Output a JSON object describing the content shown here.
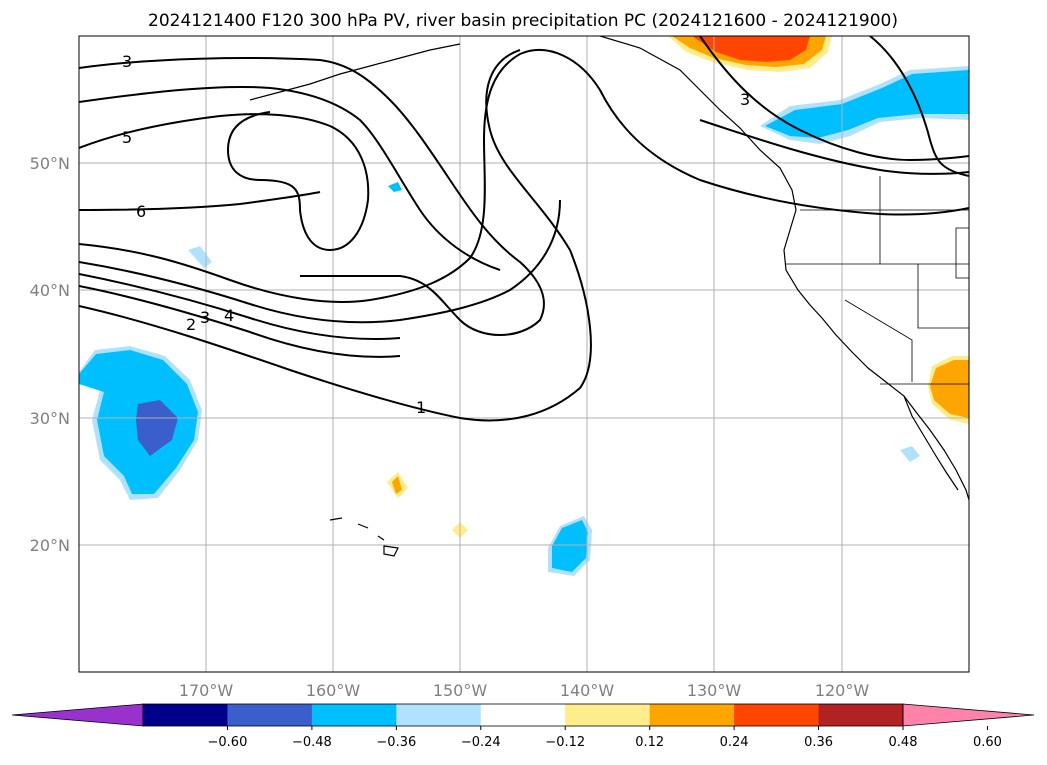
{
  "title": "2024121400 F120 300 hPa PV, river basin precipitation PC (2024121600 - 2024121900)",
  "map": {
    "lon_range": [
      -180,
      -110
    ],
    "lat_range": [
      10,
      60
    ],
    "lat_ticks": [
      {
        "value": 50,
        "label": "50°N"
      },
      {
        "value": 40,
        "label": "40°N"
      },
      {
        "value": 30,
        "label": "30°N"
      },
      {
        "value": 20,
        "label": "20°N"
      }
    ],
    "lon_ticks": [
      {
        "value": -170,
        "label": "170°W"
      },
      {
        "value": -160,
        "label": "160°W"
      },
      {
        "value": -150,
        "label": "150°W"
      },
      {
        "value": -140,
        "label": "140°W"
      },
      {
        "value": -130,
        "label": "130°W"
      },
      {
        "value": -120,
        "label": "120°W"
      }
    ],
    "pv_contour_labels": [
      "3",
      "5",
      "6",
      "2",
      "3",
      "4",
      "1",
      "3"
    ]
  },
  "colorbar": {
    "colors": [
      "#9932cc",
      "#00008b",
      "#3a5fcd",
      "#00bfff",
      "#b0e2ff",
      "#ffffff",
      "#ffec8b",
      "#ffa500",
      "#ff4500",
      "#b22222",
      "#ff82ab"
    ],
    "tick_labels": [
      "−0.60",
      "−0.48",
      "−0.36",
      "−0.24",
      "−0.12",
      "0.12",
      "0.24",
      "0.36",
      "0.48",
      "0.60"
    ]
  }
}
